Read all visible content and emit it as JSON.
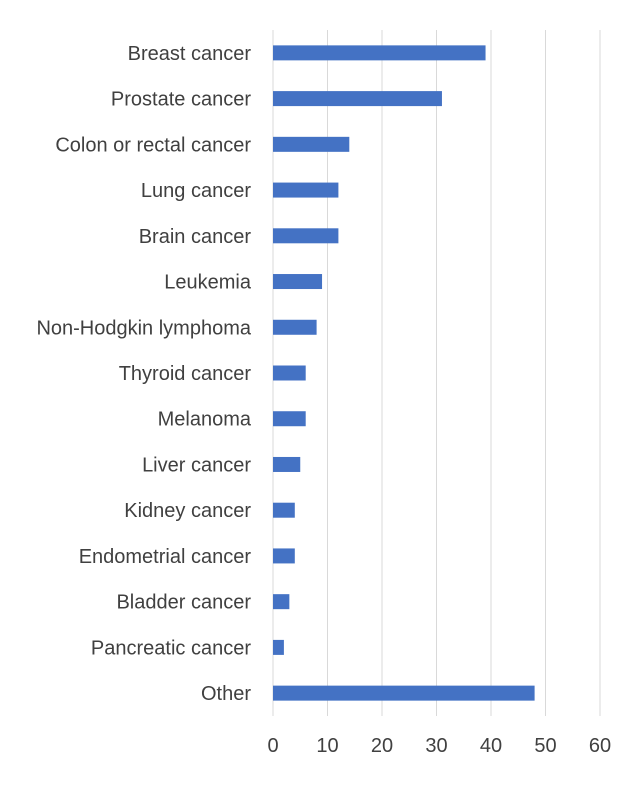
{
  "chart_data": {
    "type": "bar",
    "orientation": "horizontal",
    "title": "",
    "xlabel": "",
    "ylabel": "",
    "categories": [
      "Breast cancer",
      "Prostate cancer",
      "Colon or rectal cancer",
      "Lung cancer",
      "Brain cancer",
      "Leukemia",
      "Non-Hodgkin lymphoma",
      "Thyroid cancer",
      "Melanoma",
      "Liver cancer",
      "Kidney cancer",
      "Endometrial cancer",
      "Bladder cancer",
      "Pancreatic cancer",
      "Other"
    ],
    "values": [
      39,
      31,
      14,
      12,
      12,
      9,
      8,
      6,
      6,
      5,
      4,
      4,
      3,
      2,
      48
    ],
    "xlim": [
      0,
      60
    ],
    "xticks": [
      "0",
      "10",
      "20",
      "30",
      "40",
      "50",
      "60"
    ],
    "grid": "vertical",
    "legend": "none",
    "colors": {
      "bar": "#4472C4",
      "grid": "#D9D9D9",
      "label": "#404040"
    }
  }
}
